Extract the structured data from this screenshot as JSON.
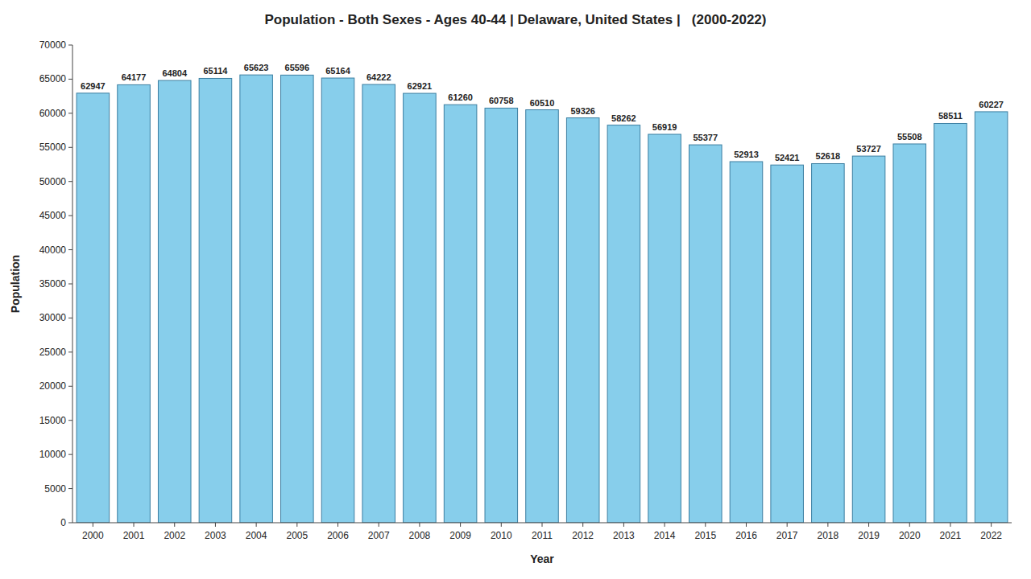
{
  "chart_data": {
    "type": "bar",
    "title": "Population - Both Sexes - Ages 40-44 | Delaware, United States |   (2000-2022)",
    "xlabel": "Year",
    "ylabel": "Population",
    "categories": [
      "2000",
      "2001",
      "2002",
      "2003",
      "2004",
      "2005",
      "2006",
      "2007",
      "2008",
      "2009",
      "2010",
      "2011",
      "2012",
      "2013",
      "2014",
      "2015",
      "2016",
      "2017",
      "2018",
      "2019",
      "2020",
      "2021",
      "2022"
    ],
    "values": [
      62947,
      64177,
      64804,
      65114,
      65623,
      65596,
      65164,
      64222,
      62921,
      61260,
      60758,
      60510,
      59326,
      58262,
      56919,
      55377,
      52913,
      52421,
      52618,
      53727,
      55508,
      58511,
      60227
    ],
    "color": "#87CEEB",
    "ylim": [
      0,
      70000
    ],
    "yticks": [
      0,
      5000,
      10000,
      15000,
      20000,
      25000,
      30000,
      35000,
      40000,
      45000,
      50000,
      55000,
      60000,
      65000,
      70000
    ],
    "grid": false,
    "data_labels": true
  }
}
